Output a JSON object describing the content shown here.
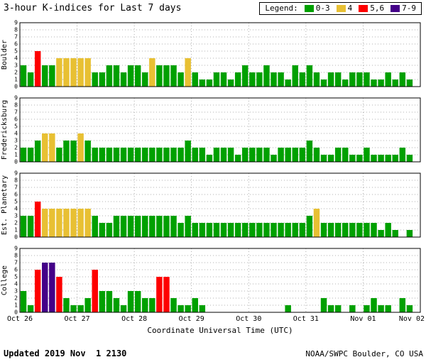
{
  "chart_data": {
    "type": "bar",
    "title": "3-hour K-indices for Last 7 days",
    "xlabel": "Coordinate Universal Time (UTC)",
    "x_tick_labels": [
      "Oct 26",
      "Oct 27",
      "Oct 28",
      "Oct 29",
      "Oct 30",
      "Oct 31",
      "Nov 01",
      "Nov 02"
    ],
    "ylim": [
      0,
      9
    ],
    "intervals_per_day": 8,
    "grid": "dotted",
    "legend": {
      "label": "Legend:",
      "position": "top-right",
      "entries": [
        {
          "label": "0-3",
          "color": "#00a000"
        },
        {
          "label": "4",
          "color": "#e8c033"
        },
        {
          "label": "5,6",
          "color": "#fe0000"
        },
        {
          "label": "7-9",
          "color": "#440088"
        }
      ]
    },
    "panels": [
      {
        "name": "Boulder",
        "values": [
          3,
          2,
          5,
          3,
          3,
          4,
          4,
          4,
          4,
          4,
          2,
          2,
          3,
          3,
          2,
          3,
          3,
          2,
          4,
          3,
          3,
          3,
          2,
          4,
          2,
          1,
          1,
          2,
          2,
          1,
          2,
          3,
          2,
          2,
          3,
          2,
          2,
          1,
          3,
          2,
          3,
          2,
          1,
          2,
          2,
          1,
          2,
          2,
          2,
          1,
          1,
          2,
          1,
          2,
          1
        ]
      },
      {
        "name": "Fredericksburg",
        "values": [
          2,
          2,
          3,
          4,
          4,
          2,
          3,
          3,
          4,
          3,
          2,
          2,
          2,
          2,
          2,
          2,
          2,
          2,
          2,
          2,
          2,
          2,
          2,
          3,
          2,
          2,
          1,
          2,
          2,
          2,
          1,
          2,
          2,
          2,
          2,
          1,
          2,
          2,
          2,
          2,
          3,
          2,
          1,
          1,
          2,
          2,
          1,
          1,
          2,
          1,
          1,
          1,
          1,
          2,
          1
        ]
      },
      {
        "name": "Est. Planetary",
        "values": [
          3,
          3,
          5,
          4,
          4,
          4,
          4,
          4,
          4,
          4,
          3,
          2,
          2,
          3,
          3,
          3,
          3,
          3,
          3,
          3,
          3,
          3,
          2,
          3,
          2,
          2,
          2,
          2,
          2,
          2,
          2,
          2,
          2,
          2,
          2,
          2,
          2,
          2,
          2,
          2,
          3,
          4,
          2,
          2,
          2,
          2,
          2,
          2,
          2,
          2,
          1,
          2,
          1,
          0,
          1
        ]
      },
      {
        "name": "College",
        "values": [
          3,
          1,
          6,
          7,
          7,
          5,
          2,
          1,
          1,
          2,
          6,
          3,
          3,
          2,
          1,
          3,
          3,
          2,
          2,
          5,
          5,
          2,
          1,
          1,
          2,
          1,
          0,
          0,
          0,
          0,
          0,
          0,
          0,
          0,
          0,
          0,
          0,
          1,
          0,
          0,
          0,
          0,
          2,
          1,
          1,
          0,
          1,
          0,
          1,
          2,
          1,
          1,
          0,
          2,
          1
        ]
      }
    ]
  },
  "footer": {
    "updated_label": "Updated",
    "updated_value": "2019 Nov  1 2130",
    "credit": "NOAA/SWPC Boulder, CO USA"
  }
}
